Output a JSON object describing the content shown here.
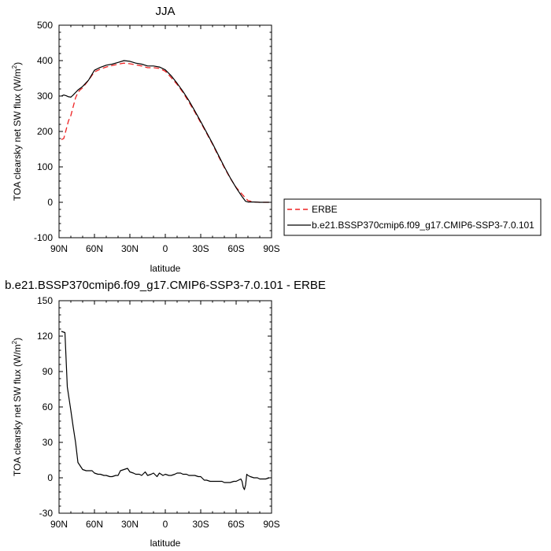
{
  "chart_data": [
    {
      "type": "line",
      "title": "JJA",
      "xlabel": "latitude",
      "ylabel_main": "TOA clearsky net SW flux (W/m",
      "ylabel_sup": "2",
      "ylabel_tail": ")",
      "xlim": [
        90,
        -90
      ],
      "ylim": [
        -100,
        500
      ],
      "x_ticks": [
        90,
        60,
        30,
        0,
        -30,
        -60,
        -90
      ],
      "x_tick_labels": [
        "90N",
        "60N",
        "30N",
        "0",
        "30S",
        "60S",
        "90S"
      ],
      "y_ticks": [
        -100,
        0,
        100,
        200,
        300,
        400,
        500
      ],
      "y_tick_labels": [
        "-100",
        "0",
        "100",
        "200",
        "300",
        "400",
        "500"
      ],
      "legend": [
        {
          "label": "ERBE",
          "color": "#ee2222",
          "dashed": true
        },
        {
          "label": "b.e21.BSSP370cmip6.f09_g17.CMIP6-SSP3-7.0.101",
          "color": "#000000",
          "dashed": false
        }
      ],
      "series": [
        {
          "name": "ERBE",
          "color": "#ee2222",
          "dashed": true,
          "x": [
            88,
            86,
            84,
            82,
            80,
            78,
            76,
            74,
            72,
            70,
            65,
            60,
            55,
            50,
            45,
            40,
            35,
            30,
            25,
            20,
            15,
            10,
            5,
            0,
            -5,
            -10,
            -15,
            -20,
            -25,
            -30,
            -35,
            -40,
            -45,
            -50,
            -55,
            -60,
            -65,
            -68,
            -70,
            -75,
            -80,
            -85,
            -88
          ],
          "y": [
            177,
            180,
            205,
            230,
            245,
            270,
            295,
            310,
            318,
            323,
            345,
            368,
            376,
            382,
            386,
            390,
            393,
            391,
            388,
            385,
            380,
            380,
            378,
            370,
            352,
            333,
            310,
            283,
            255,
            225,
            195,
            164,
            130,
            98,
            68,
            42,
            23,
            12,
            5,
            1,
            0,
            0,
            0
          ]
        },
        {
          "name": "b.e21.BSSP370cmip6.f09_g17.CMIP6-SSP3-7.0.101",
          "color": "#000000",
          "dashed": false,
          "x": [
            88,
            86,
            84,
            82,
            80,
            78,
            76,
            74,
            72,
            70,
            65,
            60,
            55,
            50,
            45,
            40,
            35,
            30,
            25,
            20,
            15,
            10,
            5,
            0,
            -5,
            -10,
            -15,
            -20,
            -25,
            -30,
            -35,
            -40,
            -45,
            -50,
            -55,
            -60,
            -65,
            -68,
            -70,
            -75,
            -80,
            -85,
            -88
          ],
          "y": [
            300,
            303,
            301,
            298,
            297,
            303,
            310,
            317,
            322,
            327,
            345,
            373,
            381,
            387,
            390,
            395,
            400,
            398,
            393,
            390,
            385,
            385,
            382,
            374,
            357,
            336,
            313,
            287,
            258,
            228,
            197,
            166,
            133,
            100,
            69,
            41,
            16,
            3,
            1,
            1,
            0,
            0,
            0
          ]
        }
      ]
    },
    {
      "type": "line",
      "title": "b.e21.BSSP370cmip6.f09_g17.CMIP6-SSP3-7.0.101 - ERBE",
      "xlabel": "latitude",
      "ylabel_main": "TOA clearsky net SW flux (W/m",
      "ylabel_sup": "2",
      "ylabel_tail": ")",
      "xlim": [
        90,
        -90
      ],
      "ylim": [
        -30,
        150
      ],
      "x_ticks": [
        90,
        60,
        30,
        0,
        -30,
        -60,
        -90
      ],
      "x_tick_labels": [
        "90N",
        "60N",
        "30N",
        "0",
        "30S",
        "60S",
        "90S"
      ],
      "y_ticks": [
        -30,
        0,
        30,
        60,
        90,
        120,
        150
      ],
      "y_tick_labels": [
        "-30",
        "0",
        "30",
        "60",
        "90",
        "120",
        "150"
      ],
      "series": [
        {
          "color": "#000000",
          "dashed": false,
          "x": [
            88,
            85,
            83,
            80,
            78,
            76,
            74,
            72,
            70,
            67,
            65,
            62,
            60,
            57,
            55,
            52,
            50,
            47,
            45,
            42,
            40,
            38,
            35,
            32,
            30,
            27,
            25,
            22,
            20,
            17,
            15,
            12,
            10,
            7,
            5,
            2,
            0,
            -3,
            -5,
            -8,
            -10,
            -13,
            -15,
            -18,
            -20,
            -23,
            -25,
            -28,
            -30,
            -33,
            -35,
            -38,
            -40,
            -43,
            -45,
            -48,
            -50,
            -53,
            -55,
            -58,
            -60,
            -62,
            -64,
            -65,
            -66,
            -67,
            -68,
            -69,
            -70,
            -72,
            -75,
            -78,
            -80,
            -85,
            -88
          ],
          "y": [
            124,
            123,
            77,
            57,
            43,
            30,
            13,
            10,
            7,
            6,
            6,
            6,
            4,
            3,
            3,
            2,
            2,
            1,
            1,
            2,
            2,
            6,
            7,
            8,
            5,
            4,
            3,
            3,
            2,
            5,
            2,
            3,
            4,
            1,
            4,
            2,
            3,
            2,
            2,
            3,
            4,
            4,
            3,
            3,
            2,
            2,
            2,
            1,
            1,
            -2,
            -2,
            -3,
            -3,
            -3,
            -3,
            -3,
            -4,
            -4,
            -4,
            -3,
            -3,
            -2,
            -1,
            -3,
            -8,
            -10,
            -6,
            3,
            2,
            1,
            0,
            0,
            -1,
            -1,
            0
          ]
        }
      ]
    }
  ]
}
